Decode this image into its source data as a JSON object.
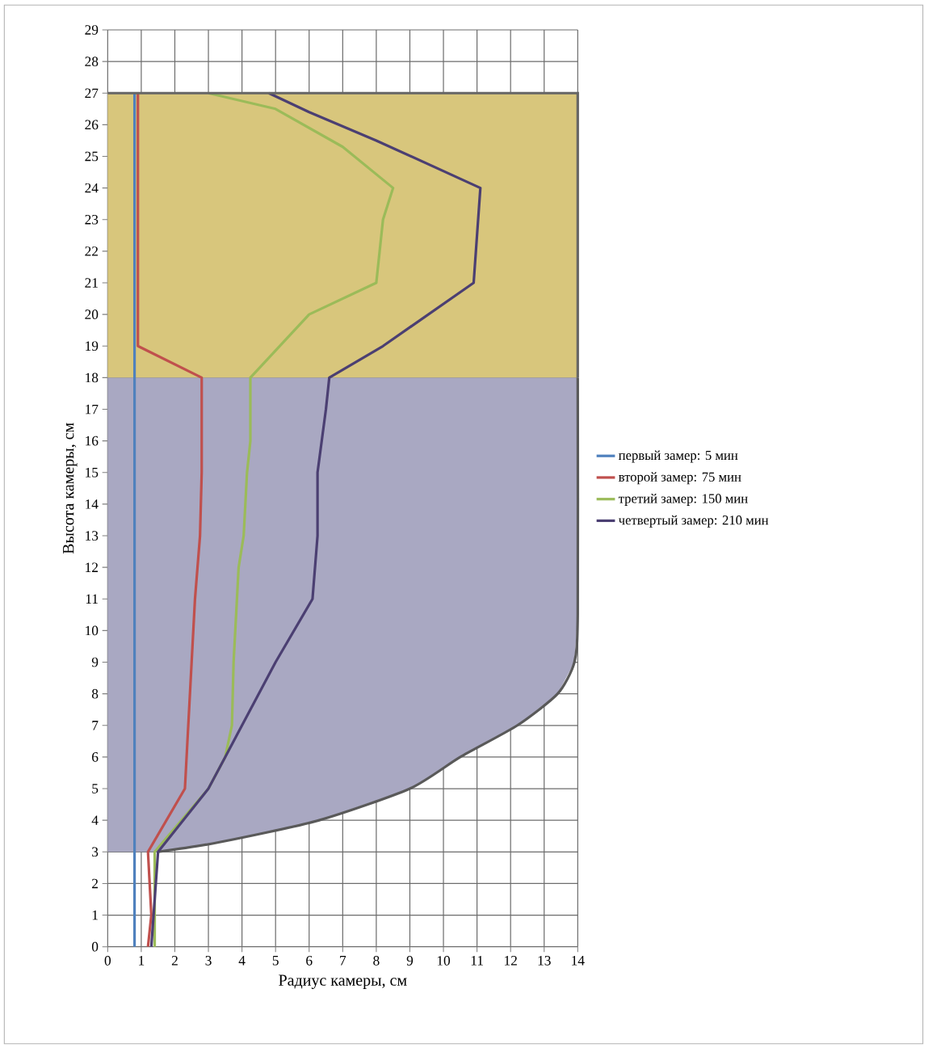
{
  "chart_data": {
    "type": "line",
    "xlabel": "Радиус камеры, см",
    "ylabel": "Высота камеры, см",
    "xlim": [
      0,
      14
    ],
    "ylim": [
      0,
      29
    ],
    "xticks": [
      0,
      1,
      2,
      3,
      4,
      5,
      6,
      7,
      8,
      9,
      10,
      11,
      12,
      13,
      14
    ],
    "yticks": [
      0,
      1,
      2,
      3,
      4,
      5,
      6,
      7,
      8,
      9,
      10,
      11,
      12,
      13,
      14,
      15,
      16,
      17,
      18,
      19,
      20,
      21,
      22,
      23,
      24,
      25,
      26,
      27,
      28,
      29
    ],
    "grid": true,
    "legend": "right",
    "line_style": "solid",
    "bands": [
      {
        "axis": "y",
        "from": 18,
        "to": 27,
        "color": "#d8c67c"
      }
    ],
    "series": [
      {
        "type": "area",
        "color": "#a9a8c2",
        "x": [
          0,
          1.5,
          3.3,
          6.3,
          9,
          10.5,
          12.2,
          13.4,
          13.9,
          14,
          14,
          0
        ],
        "values": [
          3,
          3,
          3.3,
          4,
          5,
          6,
          7,
          8,
          9,
          10.5,
          18,
          18
        ]
      },
      {
        "name": "первый замер: 5 мин",
        "color": "#4f81bd",
        "x": [
          0.8,
          0.8
        ],
        "values": [
          0,
          27
        ]
      },
      {
        "name": "второй замер: 75 мин",
        "color": "#c0504d",
        "x": [
          1.2,
          1.3,
          1.25,
          1.2,
          2.3,
          2.4,
          2.5,
          2.6,
          2.75,
          2.8,
          2.8,
          0.9,
          0.9
        ],
        "values": [
          0,
          1,
          2,
          3,
          5,
          7,
          9,
          11,
          13,
          15,
          18,
          19,
          27
        ]
      },
      {
        "name": "третий замер: 150 мин",
        "color": "#9bbb59",
        "x": [
          1.4,
          1.4,
          3.0,
          3.5,
          3.7,
          3.75,
          3.9,
          4.05,
          4.15,
          4.25,
          4.25,
          6.0,
          8.0,
          8.2,
          8.5,
          7.0,
          5.0,
          3.0
        ],
        "values": [
          0,
          3,
          5,
          6,
          7,
          9,
          12,
          13,
          15,
          16,
          18,
          20,
          21,
          23,
          24,
          25.3,
          26.5,
          27
        ]
      },
      {
        "name": "четвертый замер: 210 мин",
        "color": "#4b3f72",
        "x": [
          1.3,
          1.5,
          3.0,
          3.5,
          4.0,
          5.0,
          6.1,
          6.25,
          6.25,
          6.5,
          6.6,
          8.2,
          10.9,
          11.1,
          8.0,
          6.0,
          4.8
        ],
        "values": [
          0,
          3,
          5,
          6,
          7,
          9,
          11,
          13,
          15,
          17,
          18,
          19,
          21,
          24,
          25.5,
          26.4,
          27
        ]
      }
    ]
  }
}
